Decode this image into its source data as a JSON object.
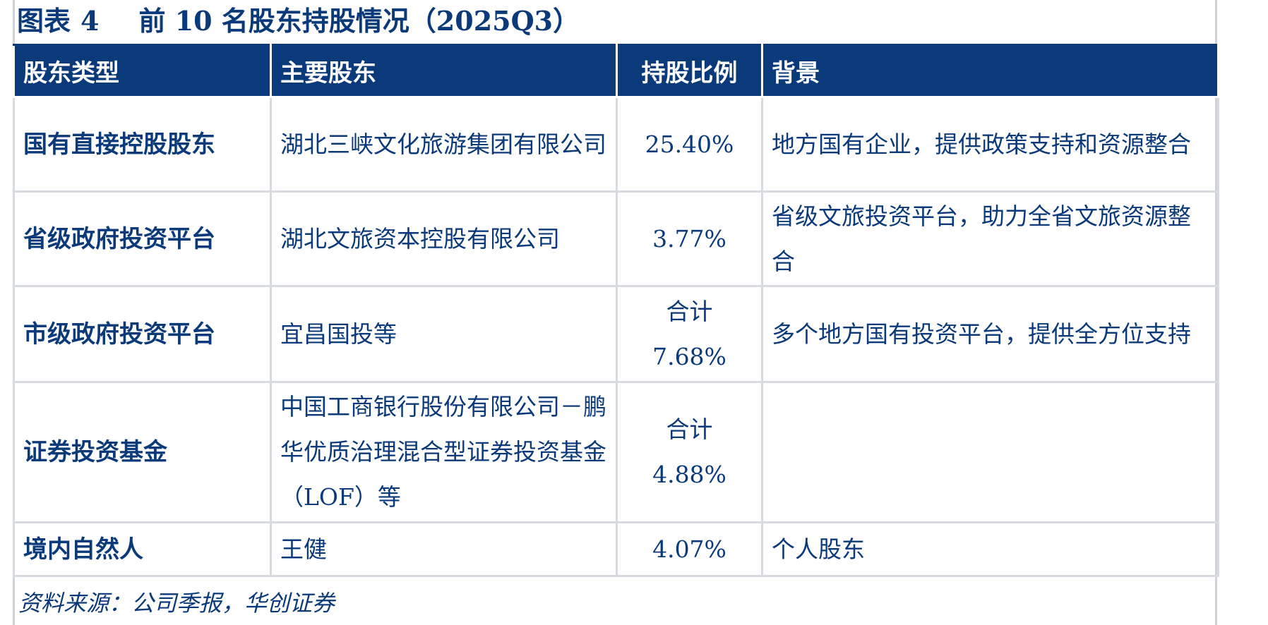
{
  "title": {
    "label": "图表",
    "number": "4",
    "text": "前 10 名股东持股情况（2025Q3）"
  },
  "table": {
    "headers": [
      "股东类型",
      "主要股东",
      "持股比例",
      "背景"
    ],
    "rows": [
      {
        "type": "国有直接控股股东",
        "holder": "湖北三峡文化旅游集团有限公司",
        "ratio": "25.40%",
        "background": "地方国有企业，提供政策支持和资源整合"
      },
      {
        "type": "省级政府投资平台",
        "holder": "湖北文旅资本控股有限公司",
        "ratio": "3.77%",
        "background": "省级文旅投资平台，助力全省文旅资源整合"
      },
      {
        "type": "市级政府投资平台",
        "holder": "宜昌国投等",
        "ratio": "合计 7.68%",
        "background": "多个地方国有投资平台，提供全方位支持"
      },
      {
        "type": "证券投资基金",
        "holder": "中国工商银行股份有限公司－鹏华优质治理混合型证券投资基金（LOF）等",
        "ratio": "合计 4.88%",
        "background": ""
      },
      {
        "type": "境内自然人",
        "holder": "王健",
        "ratio": "4.07%",
        "background": "个人股东"
      }
    ]
  },
  "source": "资料来源：公司季报，华创证券",
  "colors": {
    "header_bg": "#0b3a7a",
    "text": "#0b3a7a",
    "border": "#d7dbe0"
  }
}
